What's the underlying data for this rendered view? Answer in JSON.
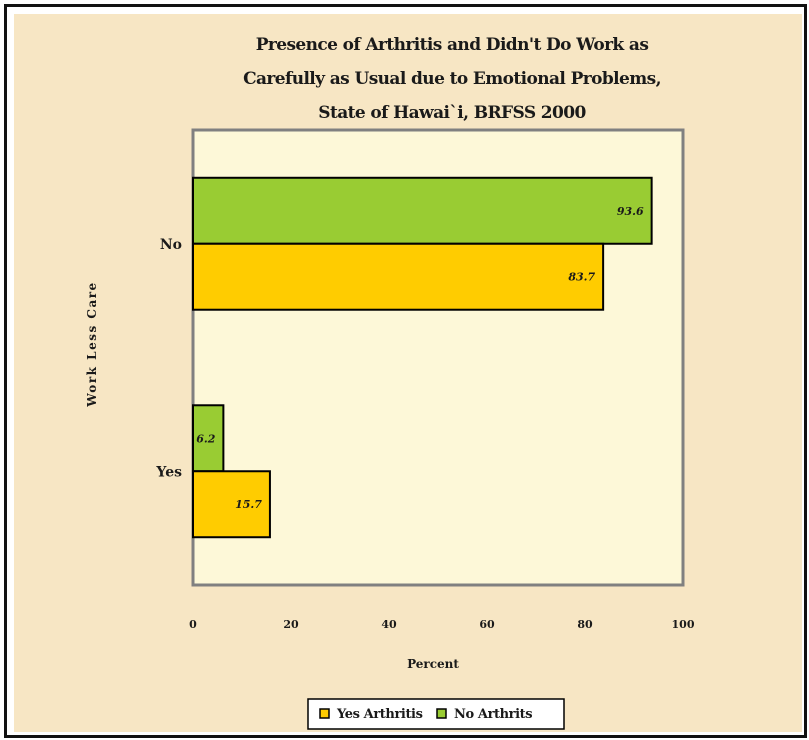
{
  "chart_data": {
    "type": "bar",
    "orientation": "horizontal",
    "title_lines": [
      "Presence of Arthritis  and Didn't Do Work as",
      "Carefully as Usual due to Emotional Problems,",
      "State of Hawai`i, BRFSS 2000"
    ],
    "xlabel": "Percent",
    "ylabel": "Work Less Care",
    "categories": [
      "No",
      "Yes"
    ],
    "series": [
      {
        "name": "Yes Arthritis",
        "values": [
          83.7,
          15.7
        ],
        "labels": [
          "83.7",
          "15.7"
        ],
        "color": "#ffcc00"
      },
      {
        "name": "No Arthrits",
        "values": [
          93.6,
          6.2
        ],
        "labels": [
          "93.6",
          "6.2"
        ],
        "color": "#99cc33"
      }
    ],
    "xlim": [
      0,
      100
    ],
    "xticks": [
      "0",
      "20",
      "40",
      "60",
      "80",
      "100"
    ],
    "grid": false,
    "legend_position": "bottom",
    "colors": {
      "plot_background": "#fdf8d8",
      "page_background": "#f7e6c4",
      "plot_border": "#808080",
      "bar_border": "#000000"
    }
  }
}
